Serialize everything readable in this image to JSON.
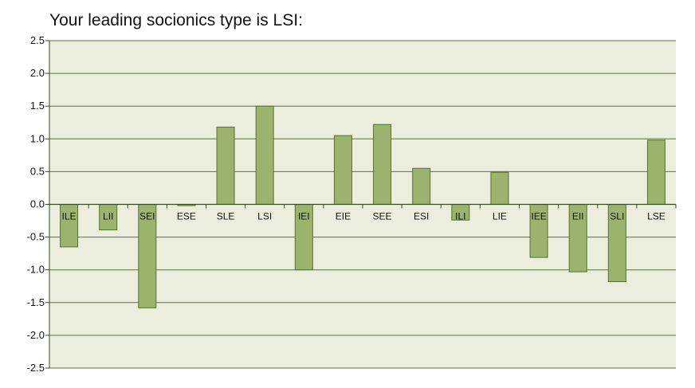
{
  "chart_data": {
    "type": "bar",
    "title": "Your leading socionics type is LSI:",
    "xlabel": "",
    "ylabel": "",
    "categories": [
      "ILE",
      "LII",
      "SEI",
      "ESE",
      "SLE",
      "LSI",
      "IEI",
      "EIE",
      "SEE",
      "ESI",
      "ILI",
      "LIE",
      "IEE",
      "EII",
      "SLI",
      "LSE"
    ],
    "values": [
      -0.65,
      -0.39,
      -1.58,
      -0.02,
      1.18,
      1.5,
      -1.0,
      1.05,
      1.22,
      0.55,
      -0.24,
      0.49,
      -0.81,
      -1.03,
      -1.18,
      0.98
    ],
    "ylim": [
      -2.5,
      2.5
    ],
    "yticks": [
      2.5,
      2.0,
      1.5,
      1.0,
      0.5,
      0.0,
      -0.5,
      -1.0,
      -1.5,
      -2.0,
      -2.5
    ],
    "ytick_labels": [
      "2.5",
      "2.0",
      "1.5",
      "1.0",
      "0.5",
      "0.0",
      "-0.5",
      "-1.0",
      "-1.5",
      "-2.0",
      "-2.5"
    ],
    "grid": true,
    "legend": "none"
  },
  "colors": {
    "plot_background": "#EBEEDC",
    "bar_fill": "#9BB36D",
    "bar_stroke": "#57722F",
    "gridline": "#5E6F42",
    "axis": "#3A4A25",
    "text": "#111111"
  }
}
